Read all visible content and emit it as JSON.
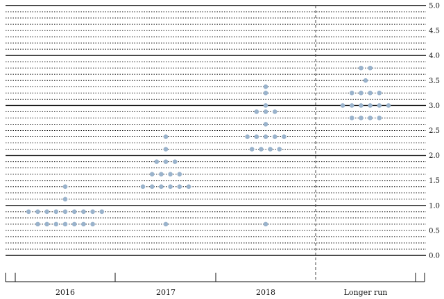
{
  "chart_data": {
    "type": "scatter",
    "title": "",
    "xlabel": "",
    "ylabel": "",
    "categories": [
      "2016",
      "2017",
      "2018",
      "Longer run"
    ],
    "ylim": [
      0,
      5
    ],
    "y_ticks": [
      "0.0",
      "0.5",
      "1.0",
      "1.5",
      "2.0",
      "2.5",
      "3.0",
      "3.5",
      "4.0",
      "4.5",
      "5.0"
    ],
    "y_step": 0.125,
    "y_axis_side": "right",
    "grid": true,
    "dot_color": "#9ab3cc",
    "divider_before": "Longer run",
    "series": [
      {
        "category": "2016",
        "groups": [
          {
            "value": 0.625,
            "count": 7
          },
          {
            "value": 0.875,
            "count": 9
          },
          {
            "value": 1.125,
            "count": 1
          },
          {
            "value": 1.375,
            "count": 1
          }
        ]
      },
      {
        "category": "2017",
        "groups": [
          {
            "value": 0.625,
            "count": 1
          },
          {
            "value": 1.375,
            "count": 6
          },
          {
            "value": 1.625,
            "count": 4
          },
          {
            "value": 1.875,
            "count": 3
          },
          {
            "value": 2.125,
            "count": 1
          },
          {
            "value": 2.375,
            "count": 1
          }
        ]
      },
      {
        "category": "2018",
        "groups": [
          {
            "value": 0.625,
            "count": 1
          },
          {
            "value": 2.125,
            "count": 4
          },
          {
            "value": 2.375,
            "count": 5
          },
          {
            "value": 2.625,
            "count": 1
          },
          {
            "value": 2.875,
            "count": 3
          },
          {
            "value": 3.0,
            "count": 1
          },
          {
            "value": 3.25,
            "count": 1
          },
          {
            "value": 3.375,
            "count": 1
          }
        ]
      },
      {
        "category": "Longer run",
        "groups": [
          {
            "value": 2.75,
            "count": 4
          },
          {
            "value": 3.0,
            "count": 6
          },
          {
            "value": 3.25,
            "count": 4
          },
          {
            "value": 3.5,
            "count": 1
          },
          {
            "value": 3.75,
            "count": 2
          }
        ]
      }
    ]
  }
}
